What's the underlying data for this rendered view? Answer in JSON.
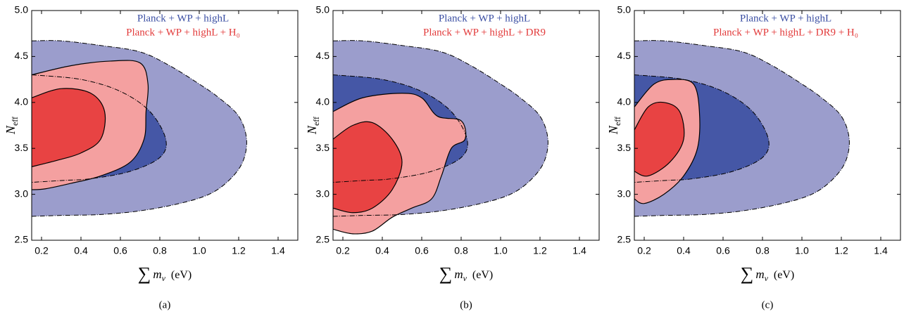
{
  "chart_data": [
    {
      "type": "contour",
      "label": "(a)",
      "xlabel": {
        "symbol": "∑",
        "var": "m",
        "sub": "ν",
        "unit": "(eV)"
      },
      "ylabel": {
        "var": "N",
        "sub": "eff"
      },
      "xlim": [
        0.15,
        1.5
      ],
      "ylim": [
        2.5,
        5.0
      ],
      "xticks": [
        0.2,
        0.4,
        0.6,
        0.8,
        {
          "value": 1.0,
          "label": "1.0"
        },
        1.2,
        1.4
      ],
      "yticks": [
        2.5,
        {
          "value": 3.0,
          "label": "3.0"
        },
        3.5,
        {
          "value": 4.0,
          "label": "4.0"
        },
        4.5,
        {
          "value": 5.0,
          "label": "5.0"
        }
      ],
      "series": [
        {
          "name": "Planck + WP + highL",
          "color": "#3b4fa3",
          "colors": [
            "#9b9dcc",
            "#4557a6"
          ],
          "outline": "dashed",
          "contours": [
            {
              "x": [
                0.15,
                0.3,
                0.5,
                0.7,
                0.85,
                1.0,
                1.1,
                1.2,
                1.24,
                1.22,
                1.15,
                1.05,
                0.9,
                0.7,
                0.5,
                0.3,
                0.15
              ],
              "y": [
                4.67,
                4.67,
                4.62,
                4.55,
                4.4,
                4.2,
                4.05,
                3.85,
                3.6,
                3.35,
                3.15,
                3.0,
                2.9,
                2.82,
                2.78,
                2.77,
                2.76
              ]
            },
            {
              "x": [
                0.15,
                0.4,
                0.6,
                0.75,
                0.83,
                0.8,
                0.65,
                0.45,
                0.3,
                0.15
              ],
              "y": [
                4.3,
                4.25,
                4.12,
                3.9,
                3.6,
                3.4,
                3.25,
                3.17,
                3.15,
                3.13
              ]
            }
          ]
        },
        {
          "name": "Planck + WP + highL + H₀",
          "color": "#e23a3a",
          "colors": [
            "#f4a0a0",
            "#e84343"
          ],
          "outline": "solid",
          "contours": [
            {
              "x": [
                0.15,
                0.35,
                0.55,
                0.7,
                0.74,
                0.73,
                0.72,
                0.65,
                0.5,
                0.35,
                0.22,
                0.15
              ],
              "y": [
                4.3,
                4.4,
                4.45,
                4.43,
                4.2,
                3.9,
                3.6,
                3.35,
                3.2,
                3.12,
                3.06,
                3.05
              ]
            },
            {
              "x": [
                0.15,
                0.3,
                0.45,
                0.52,
                0.5,
                0.4,
                0.28,
                0.15
              ],
              "y": [
                4.05,
                4.15,
                4.1,
                3.9,
                3.6,
                3.45,
                3.37,
                3.3
              ]
            }
          ]
        }
      ]
    },
    {
      "type": "contour",
      "label": "(b)",
      "xlabel": {
        "symbol": "∑",
        "var": "m",
        "sub": "ν",
        "unit": "(eV)"
      },
      "ylabel": {
        "var": "N",
        "sub": "eff"
      },
      "xlim": [
        0.15,
        1.5
      ],
      "ylim": [
        2.5,
        5.0
      ],
      "xticks": [
        0.2,
        0.4,
        0.6,
        0.8,
        {
          "value": 1.0,
          "label": "1.0"
        },
        1.2,
        1.4
      ],
      "yticks": [
        2.5,
        {
          "value": 3.0,
          "label": "3.0"
        },
        3.5,
        {
          "value": 4.0,
          "label": "4.0"
        },
        4.5,
        {
          "value": 5.0,
          "label": "5.0"
        }
      ],
      "series": [
        {
          "name": "Planck + WP + highL",
          "color": "#3b4fa3",
          "colors": [
            "#9b9dcc",
            "#4557a6"
          ],
          "outline": "dashed",
          "contours": [
            {
              "x": [
                0.15,
                0.3,
                0.5,
                0.7,
                0.85,
                1.0,
                1.1,
                1.2,
                1.24,
                1.22,
                1.15,
                1.05,
                0.9,
                0.7,
                0.5,
                0.3,
                0.15
              ],
              "y": [
                4.67,
                4.67,
                4.62,
                4.55,
                4.4,
                4.2,
                4.05,
                3.85,
                3.6,
                3.35,
                3.15,
                3.0,
                2.9,
                2.82,
                2.78,
                2.77,
                2.76
              ]
            },
            {
              "x": [
                0.15,
                0.4,
                0.6,
                0.75,
                0.83,
                0.8,
                0.65,
                0.45,
                0.3,
                0.15
              ],
              "y": [
                4.3,
                4.25,
                4.12,
                3.9,
                3.6,
                3.4,
                3.25,
                3.17,
                3.15,
                3.13
              ]
            }
          ]
        },
        {
          "name": "Planck + WP + highL + DR9",
          "color": "#e23a3a",
          "colors": [
            "#f4a0a0",
            "#e84343"
          ],
          "outline": "solid",
          "contours": [
            {
              "x": [
                0.15,
                0.3,
                0.5,
                0.6,
                0.68,
                0.8,
                0.82,
                0.75,
                0.7,
                0.65,
                0.55,
                0.45,
                0.35,
                0.25,
                0.15
              ],
              "y": [
                3.9,
                4.05,
                4.1,
                4.05,
                3.85,
                3.8,
                3.6,
                3.5,
                3.2,
                2.95,
                2.85,
                2.75,
                2.6,
                2.57,
                2.62
              ]
            },
            {
              "x": [
                0.15,
                0.25,
                0.35,
                0.45,
                0.5,
                0.45,
                0.35,
                0.25,
                0.15
              ],
              "y": [
                3.6,
                3.75,
                3.78,
                3.6,
                3.35,
                3.05,
                2.85,
                2.8,
                2.85
              ]
            }
          ]
        }
      ]
    },
    {
      "type": "contour",
      "label": "(c)",
      "xlabel": {
        "symbol": "∑",
        "var": "m",
        "sub": "ν",
        "unit": "(eV)"
      },
      "ylabel": {
        "var": "N",
        "sub": "eff"
      },
      "xlim": [
        0.15,
        1.5
      ],
      "ylim": [
        2.5,
        5.0
      ],
      "xticks": [
        0.2,
        0.4,
        0.6,
        0.8,
        {
          "value": 1.0,
          "label": "1.0"
        },
        1.2,
        1.4
      ],
      "yticks": [
        2.5,
        {
          "value": 3.0,
          "label": "3.0"
        },
        3.5,
        {
          "value": 4.0,
          "label": "4.0"
        },
        4.5,
        {
          "value": 5.0,
          "label": "5.0"
        }
      ],
      "series": [
        {
          "name": "Planck + WP + highL",
          "color": "#3b4fa3",
          "colors": [
            "#9b9dcc",
            "#4557a6"
          ],
          "outline": "dashed",
          "contours": [
            {
              "x": [
                0.15,
                0.3,
                0.5,
                0.7,
                0.85,
                1.0,
                1.1,
                1.2,
                1.24,
                1.22,
                1.15,
                1.05,
                0.9,
                0.7,
                0.5,
                0.3,
                0.15
              ],
              "y": [
                4.67,
                4.67,
                4.62,
                4.55,
                4.4,
                4.2,
                4.05,
                3.85,
                3.6,
                3.35,
                3.15,
                3.0,
                2.9,
                2.82,
                2.78,
                2.77,
                2.76
              ]
            },
            {
              "x": [
                0.15,
                0.4,
                0.6,
                0.75,
                0.83,
                0.8,
                0.65,
                0.45,
                0.3,
                0.15
              ],
              "y": [
                4.3,
                4.25,
                4.12,
                3.9,
                3.6,
                3.4,
                3.25,
                3.17,
                3.15,
                3.13
              ]
            }
          ]
        },
        {
          "name": "Planck + WP + highL + DR9 + H₀",
          "color": "#e23a3a",
          "colors": [
            "#f4a0a0",
            "#e84343"
          ],
          "outline": "solid",
          "contours": [
            {
              "x": [
                0.15,
                0.25,
                0.35,
                0.45,
                0.48,
                0.47,
                0.4,
                0.3,
                0.2,
                0.15
              ],
              "y": [
                3.95,
                4.2,
                4.25,
                4.2,
                3.9,
                3.5,
                3.2,
                3.0,
                2.9,
                2.95
              ]
            },
            {
              "x": [
                0.15,
                0.22,
                0.3,
                0.38,
                0.4,
                0.33,
                0.22,
                0.15
              ],
              "y": [
                3.7,
                3.95,
                4.0,
                3.9,
                3.6,
                3.35,
                3.2,
                3.25
              ]
            }
          ]
        }
      ]
    }
  ]
}
